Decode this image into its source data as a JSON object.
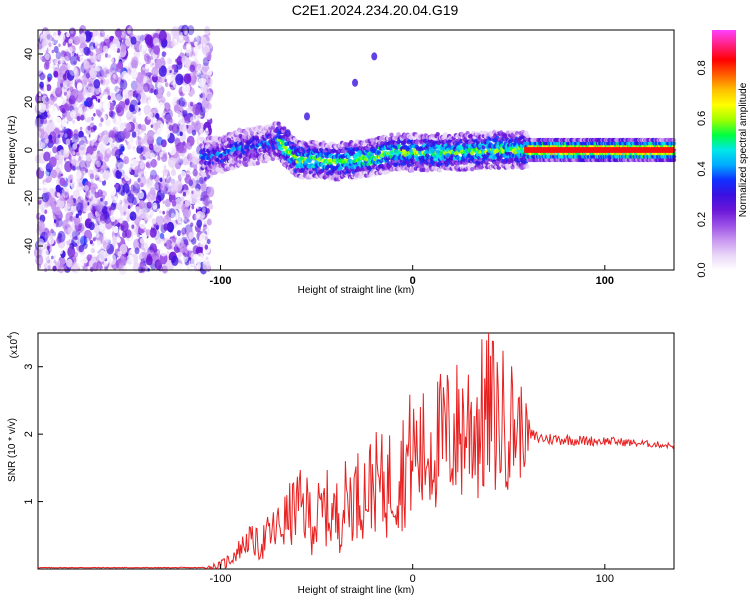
{
  "title": "C2E1.2024.234.20.04.G19",
  "colors": {
    "snr_line": "#e82020",
    "axis": "#000000",
    "colormap": [
      "#ffffff",
      "#e9d6f8",
      "#c896f0",
      "#9a4fe6",
      "#6a16d8",
      "#3a10e0",
      "#1030ff",
      "#00aaff",
      "#00e8e8",
      "#00ff40",
      "#a0ff00",
      "#ffff00",
      "#ffc000",
      "#ff6000",
      "#ff0000",
      "#ff2080",
      "#ff40ff"
    ]
  },
  "chart_data": [
    {
      "type": "heatmap",
      "xlabel": "Height of straight line (km)",
      "ylabel": "Frequency (Hz)",
      "xlim": [
        -195,
        136
      ],
      "ylim": [
        -50,
        50
      ],
      "xticks": [
        "-100",
        "0",
        "100"
      ],
      "yticks": [
        "40",
        "20",
        "0",
        "-20",
        "-40"
      ],
      "colorbar": {
        "label": "Normalized spectral amplitude",
        "range": [
          0.0,
          0.95
        ],
        "ticks": [
          "0.0",
          "0.2",
          "0.4",
          "0.6",
          "0.8"
        ]
      },
      "signal_track": {
        "description_points": [
          {
            "x": -110,
            "f": -3
          },
          {
            "x": -100,
            "f": -2
          },
          {
            "x": -90,
            "f": 1
          },
          {
            "x": -80,
            "f": 2
          },
          {
            "x": -70,
            "f": 4
          },
          {
            "x": -60,
            "f": -4
          },
          {
            "x": -50,
            "f": -4
          },
          {
            "x": -40,
            "f": -5
          },
          {
            "x": -30,
            "f": -4
          },
          {
            "x": -20,
            "f": -3
          },
          {
            "x": -10,
            "f": -1
          },
          {
            "x": 0,
            "f": -1
          },
          {
            "x": 10,
            "f": -1
          },
          {
            "x": 20,
            "f": -1
          },
          {
            "x": 40,
            "f": 0
          },
          {
            "x": 60,
            "f": 0
          },
          {
            "x": 136,
            "f": 0
          }
        ],
        "noise_region": [
          -195,
          -105
        ],
        "branch_points": [
          {
            "x": -65,
            "f": 7
          },
          {
            "x": -55,
            "f": 14
          },
          {
            "x": -30,
            "f": 28
          },
          {
            "x": -20,
            "f": 39
          }
        ]
      }
    },
    {
      "type": "line",
      "xlabel": "Height of straight line (km)",
      "ylabel": "SNR (10 * v/v)",
      "yscale_label": "(x10",
      "yscale_exp": "4",
      "xlim": [
        -195,
        136
      ],
      "ylim": [
        0,
        3.5
      ],
      "xticks": [
        "-100",
        "0",
        "100"
      ],
      "yticks": [
        "3",
        "2",
        "1"
      ],
      "series": [
        {
          "values": [
            [
              -195,
              0.02
            ],
            [
              -150,
              0.02
            ],
            [
              -110,
              0.02
            ],
            [
              -100,
              0.04
            ],
            [
              -95,
              0.15
            ],
            [
              -90,
              0.3
            ],
            [
              -85,
              0.45
            ],
            [
              -80,
              0.35
            ],
            [
              -75,
              0.5
            ],
            [
              -70,
              0.6
            ],
            [
              -65,
              0.75
            ],
            [
              -60,
              0.95
            ],
            [
              -55,
              0.85
            ],
            [
              -50,
              0.7
            ],
            [
              -45,
              0.9
            ],
            [
              -40,
              0.75
            ],
            [
              -35,
              1.0
            ],
            [
              -30,
              1.1
            ],
            [
              -25,
              1.15
            ],
            [
              -20,
              1.3
            ],
            [
              -15,
              1.2
            ],
            [
              -10,
              1.35
            ],
            [
              -5,
              1.5
            ],
            [
              0,
              1.75
            ],
            [
              5,
              1.65
            ],
            [
              10,
              1.85
            ],
            [
              15,
              1.9
            ],
            [
              20,
              2.0
            ],
            [
              25,
              2.05
            ],
            [
              30,
              2.2
            ],
            [
              35,
              2.15
            ],
            [
              40,
              2.35
            ],
            [
              45,
              2.2
            ],
            [
              50,
              2.2
            ],
            [
              55,
              2.1
            ],
            [
              60,
              2.0
            ],
            [
              65,
              1.95
            ],
            [
              70,
              1.93
            ],
            [
              80,
              1.92
            ],
            [
              90,
              1.9
            ],
            [
              100,
              1.9
            ],
            [
              110,
              1.88
            ],
            [
              120,
              1.86
            ],
            [
              130,
              1.84
            ],
            [
              136,
              1.83
            ]
          ],
          "jitter": [
            [
              -195,
              0.005
            ],
            [
              -110,
              0.005
            ],
            [
              -95,
              0.12
            ],
            [
              -80,
              0.25
            ],
            [
              -60,
              0.55
            ],
            [
              -40,
              0.6
            ],
            [
              -20,
              0.75
            ],
            [
              0,
              1.0
            ],
            [
              20,
              1.1
            ],
            [
              40,
              1.3
            ],
            [
              55,
              0.9
            ],
            [
              62,
              0.1
            ],
            [
              136,
              0.04
            ]
          ]
        }
      ]
    }
  ]
}
